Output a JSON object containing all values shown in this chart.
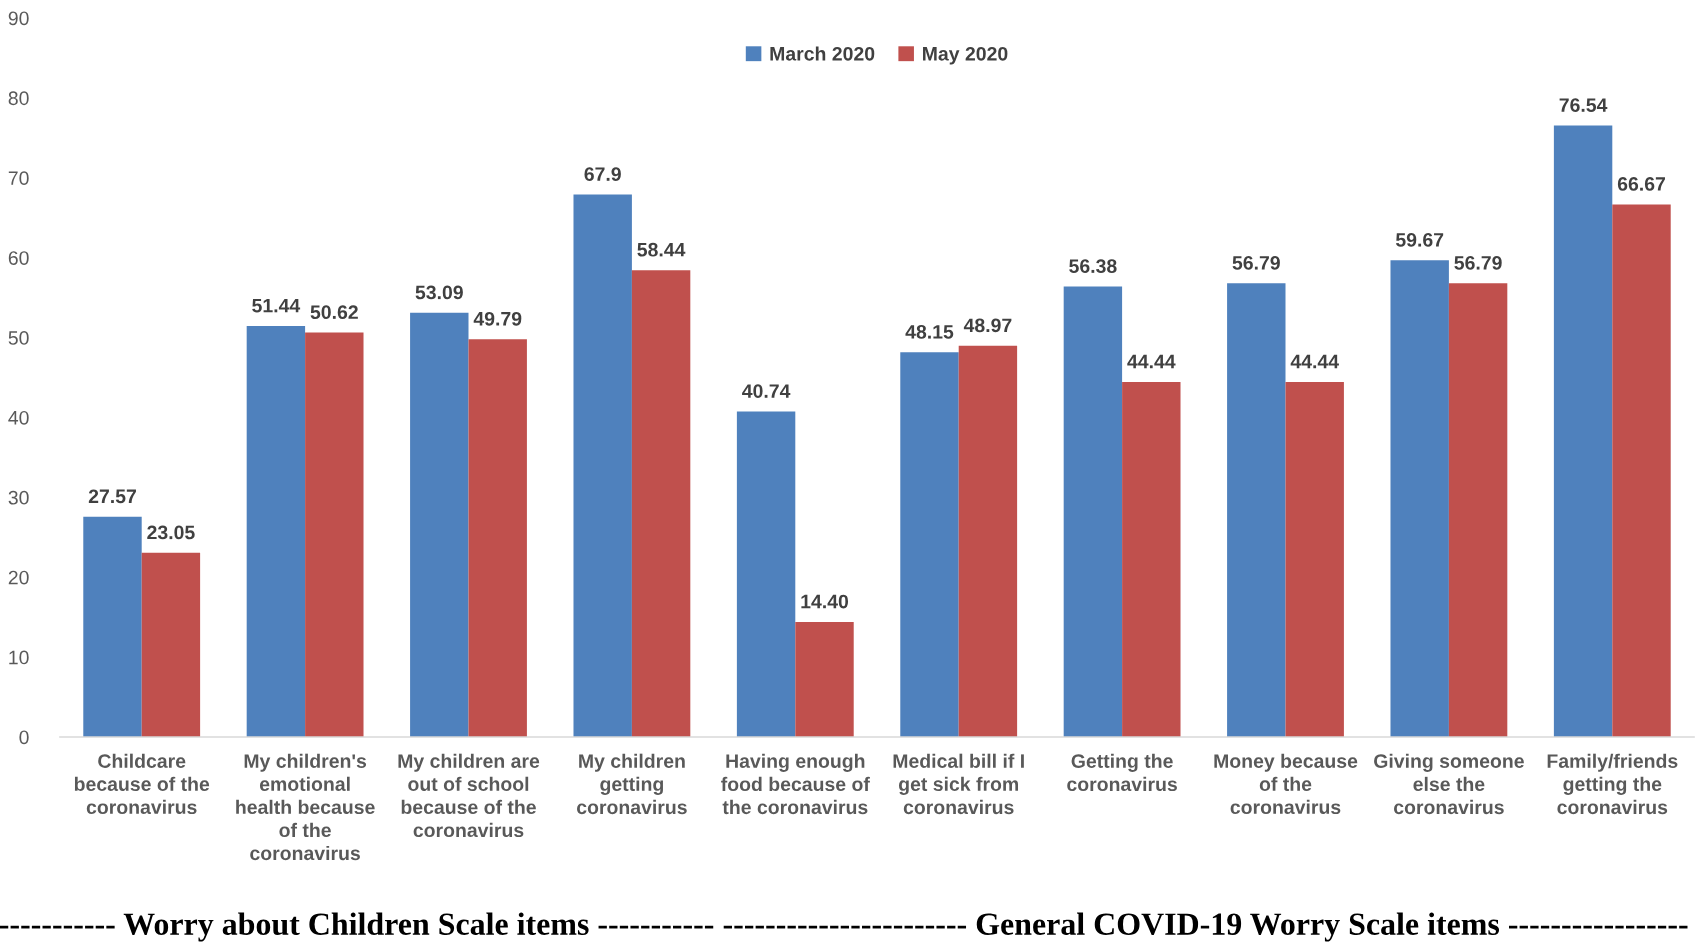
{
  "chart_data": {
    "type": "bar",
    "categories": [
      "Childcare\nbecause of the\ncoronavirus",
      "My children's\nemotional\nhealth because\nof the\ncoronavirus",
      "My children are\nout of school\nbecause of the\ncoronavirus",
      "My children\ngetting\ncoronavirus",
      "Having enough\nfood because of\nthe coronavirus",
      "Medical bill if I\nget sick from\ncoronavirus",
      "Getting the\ncoronavirus",
      "Money because\nof the\ncoronavirus",
      "Giving someone\nelse the\ncoronavirus",
      "Family/friends\ngetting the\ncoronavirus"
    ],
    "series": [
      {
        "name": "March 2020",
        "color": "#4f81bd",
        "values": [
          27.57,
          51.44,
          53.09,
          67.9,
          40.74,
          48.15,
          56.38,
          56.79,
          59.67,
          76.54
        ],
        "value_labels": [
          "27.57",
          "51.44",
          "53.09",
          "67.9",
          "40.74",
          "48.15",
          "56.38",
          "56.79",
          "59.67",
          "76.54"
        ]
      },
      {
        "name": "May 2020",
        "color": "#c0504d",
        "values": [
          23.05,
          50.62,
          49.79,
          58.44,
          14.4,
          48.97,
          44.44,
          44.44,
          56.79,
          66.67
        ],
        "value_labels": [
          "23.05",
          "50.62",
          "49.79",
          "58.44",
          "14.40",
          "48.97",
          "44.44",
          "44.44",
          "56.79",
          "66.67"
        ]
      }
    ],
    "ylim": [
      0,
      90
    ],
    "yticks": [
      0,
      10,
      20,
      30,
      40,
      50,
      60,
      70,
      80,
      90
    ],
    "grid": false,
    "legend": "top",
    "annotations": [
      "----------- Worry about Children Scale items -----------",
      "----------------------- General COVID-19 Worry Scale items -----------------"
    ]
  }
}
